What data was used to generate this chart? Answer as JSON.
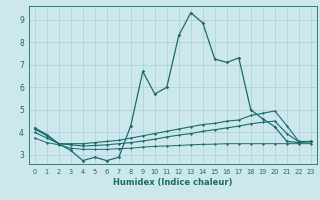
{
  "xlabel": "Humidex (Indice chaleur)",
  "background_color": "#cde8ec",
  "grid_color": "#aacdd4",
  "line_color": "#1a6b6b",
  "x_ticks": [
    0,
    1,
    2,
    3,
    4,
    5,
    6,
    7,
    8,
    9,
    10,
    11,
    12,
    13,
    14,
    15,
    16,
    17,
    18,
    19,
    20,
    21,
    22,
    23
  ],
  "y_ticks": [
    3,
    4,
    5,
    6,
    7,
    8,
    9
  ],
  "ylim": [
    2.6,
    9.6
  ],
  "xlim": [
    -0.5,
    23.5
  ],
  "series1_x": [
    0,
    1,
    2,
    3,
    4,
    5,
    6,
    7,
    8,
    9,
    10,
    11,
    12,
    13,
    14,
    15,
    16,
    17,
    18,
    19,
    20,
    21,
    22,
    23
  ],
  "series1_y": [
    4.2,
    3.9,
    3.5,
    3.2,
    2.75,
    2.9,
    2.75,
    2.9,
    4.3,
    6.7,
    5.7,
    6.0,
    8.3,
    9.3,
    8.85,
    7.25,
    7.1,
    7.3,
    5.0,
    4.6,
    4.25,
    3.6,
    3.55,
    3.6
  ],
  "series2_x": [
    0,
    1,
    2,
    3,
    4,
    5,
    6,
    7,
    8,
    9,
    10,
    11,
    12,
    13,
    14,
    15,
    16,
    17,
    18,
    19,
    20,
    21,
    22,
    23
  ],
  "series2_y": [
    4.15,
    3.85,
    3.5,
    3.5,
    3.5,
    3.55,
    3.6,
    3.65,
    3.75,
    3.85,
    3.95,
    4.05,
    4.15,
    4.25,
    4.35,
    4.4,
    4.5,
    4.55,
    4.75,
    4.85,
    4.95,
    4.3,
    3.6,
    3.6
  ],
  "series3_x": [
    0,
    1,
    2,
    3,
    4,
    5,
    6,
    7,
    8,
    9,
    10,
    11,
    12,
    13,
    14,
    15,
    16,
    17,
    18,
    19,
    20,
    21,
    22,
    23
  ],
  "series3_y": [
    4.0,
    3.75,
    3.5,
    3.45,
    3.4,
    3.42,
    3.45,
    3.5,
    3.55,
    3.62,
    3.7,
    3.8,
    3.88,
    3.95,
    4.05,
    4.12,
    4.2,
    4.28,
    4.38,
    4.45,
    4.5,
    3.95,
    3.58,
    3.58
  ],
  "series4_x": [
    0,
    1,
    2,
    3,
    4,
    5,
    6,
    7,
    8,
    9,
    10,
    11,
    12,
    13,
    14,
    15,
    16,
    17,
    18,
    19,
    20,
    21,
    22,
    23
  ],
  "series4_y": [
    3.75,
    3.55,
    3.45,
    3.3,
    3.25,
    3.25,
    3.25,
    3.28,
    3.3,
    3.35,
    3.38,
    3.4,
    3.42,
    3.45,
    3.47,
    3.48,
    3.5,
    3.5,
    3.5,
    3.5,
    3.5,
    3.5,
    3.5,
    3.5
  ]
}
